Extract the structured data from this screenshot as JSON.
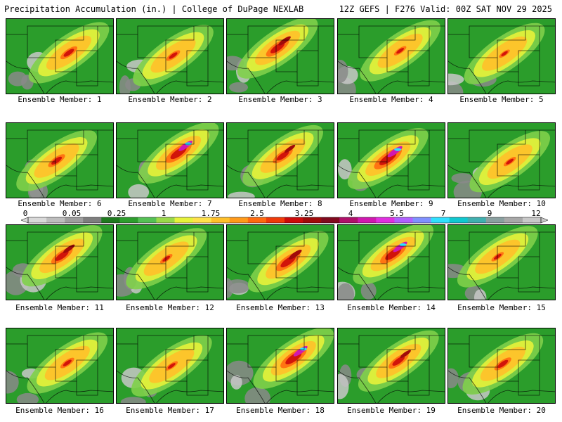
{
  "header": {
    "left": "Precipitation Accumulation (in.) | College of DuPage NEXLAB",
    "right": "12Z GEFS | F276 Valid: 00Z SAT NOV 29 2025"
  },
  "members": [
    {
      "label": "Ensemble Member: 1",
      "intensity": 0.55
    },
    {
      "label": "Ensemble Member: 2",
      "intensity": 0.45
    },
    {
      "label": "Ensemble Member: 3",
      "intensity": 0.75
    },
    {
      "label": "Ensemble Member: 4",
      "intensity": 0.4
    },
    {
      "label": "Ensemble Member: 5",
      "intensity": 0.35
    },
    {
      "label": "Ensemble Member: 6",
      "intensity": 0.55
    },
    {
      "label": "Ensemble Member: 7",
      "intensity": 0.85
    },
    {
      "label": "Ensemble Member: 8",
      "intensity": 0.65
    },
    {
      "label": "Ensemble Member: 9",
      "intensity": 0.9
    },
    {
      "label": "Ensemble Member: 10",
      "intensity": 0.4
    },
    {
      "label": "Ensemble Member: 11",
      "intensity": 0.7
    },
    {
      "label": "Ensemble Member: 12",
      "intensity": 0.4
    },
    {
      "label": "Ensemble Member: 13",
      "intensity": 0.8
    },
    {
      "label": "Ensemble Member: 14",
      "intensity": 0.85
    },
    {
      "label": "Ensemble Member: 15",
      "intensity": 0.4
    },
    {
      "label": "Ensemble Member: 16",
      "intensity": 0.45
    },
    {
      "label": "Ensemble Member: 17",
      "intensity": 0.4
    },
    {
      "label": "Ensemble Member: 18",
      "intensity": 0.85
    },
    {
      "label": "Ensemble Member: 19",
      "intensity": 0.65
    },
    {
      "label": "Ensemble Member: 20",
      "intensity": 0.55
    }
  ],
  "colorbar": {
    "labels": [
      "0",
      "0.05",
      "0.25",
      "1",
      "1.75",
      "2.5",
      "3.25",
      "4",
      "5.5",
      "7",
      "9",
      "12"
    ],
    "colors": [
      "#d9d9d9",
      "#bdbdbd",
      "#9e9e9e",
      "#7e7e7e",
      "#1f7a1f",
      "#2e9e2e",
      "#55c155",
      "#9ad94a",
      "#e6f23a",
      "#ffe14a",
      "#ffc02a",
      "#ff9a1a",
      "#ff6a10",
      "#f03a0a",
      "#cc0a0a",
      "#a00a0a",
      "#800a1e",
      "#b0106a",
      "#d018b0",
      "#e030e0",
      "#b060ff",
      "#8090ff",
      "#30e0ff",
      "#10c8d0",
      "#40b0b0",
      "#8aa0a0",
      "#a8a8a8",
      "#c8c8c8"
    ]
  }
}
